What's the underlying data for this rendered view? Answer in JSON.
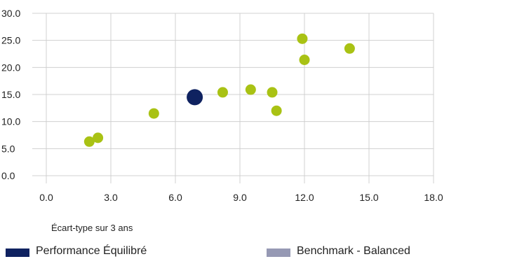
{
  "chart_data": {
    "type": "scatter",
    "xlabel": "Écart-type sur 3 ans",
    "ylabel": "",
    "xlim": [
      0,
      18
    ],
    "ylim": [
      0,
      30
    ],
    "x_ticks": [
      "0.0",
      "3.0",
      "6.0",
      "9.0",
      "12.0",
      "15.0",
      "18.0"
    ],
    "y_ticks": [
      "0.0",
      "5.0",
      "10.0",
      "15.0",
      "20.0",
      "25.0",
      "30.0"
    ],
    "grid": true,
    "colors": {
      "performance": "#0f2260",
      "peers": "#a9c214",
      "benchmark": "#9699b4",
      "grid": "#d0d0d0"
    },
    "series": [
      {
        "name": "Performance Équilibré",
        "points": [
          {
            "x": 6.9,
            "y": 14.5
          }
        ]
      },
      {
        "points": [
          {
            "x": 2.0,
            "y": 6.3
          },
          {
            "x": 2.4,
            "y": 7.0
          },
          {
            "x": 5.0,
            "y": 11.5
          },
          {
            "x": 8.2,
            "y": 15.4
          },
          {
            "x": 9.5,
            "y": 15.9
          },
          {
            "x": 10.5,
            "y": 15.4
          },
          {
            "x": 10.7,
            "y": 12.0
          },
          {
            "x": 11.9,
            "y": 25.3
          },
          {
            "x": 12.0,
            "y": 21.4
          },
          {
            "x": 14.1,
            "y": 23.5
          }
        ]
      }
    ],
    "legend": {
      "placement": "bottom",
      "items": [
        {
          "label": "Performance Équilibré",
          "color": "#0f2260"
        },
        {
          "label": "Benchmark - Balanced",
          "color": "#9699b4"
        }
      ]
    }
  }
}
